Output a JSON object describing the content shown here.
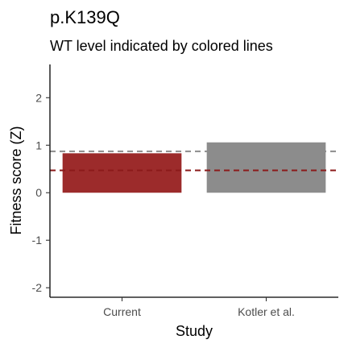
{
  "chart_data": {
    "type": "bar",
    "title": "p.K139Q",
    "subtitle": "WT level indicated by colored lines",
    "xlabel": "Study",
    "ylabel": "Fitness score (Z)",
    "categories": [
      "Current",
      "Kotler et al."
    ],
    "values": [
      0.83,
      1.06
    ],
    "bar_colors": [
      "#9c2b2b",
      "#8c8c8c"
    ],
    "wt_levels": [
      {
        "value": 0.47,
        "color": "#8b1a1a"
      },
      {
        "value": 0.87,
        "color": "#8c8c8c"
      }
    ],
    "ylim": [
      -2.2,
      2.7
    ],
    "yticks": [
      -2,
      -1,
      0,
      1,
      2
    ],
    "ytick_labels": [
      "-2",
      "-1",
      "0",
      "1",
      "2"
    ],
    "grid": false,
    "legend": "none"
  }
}
